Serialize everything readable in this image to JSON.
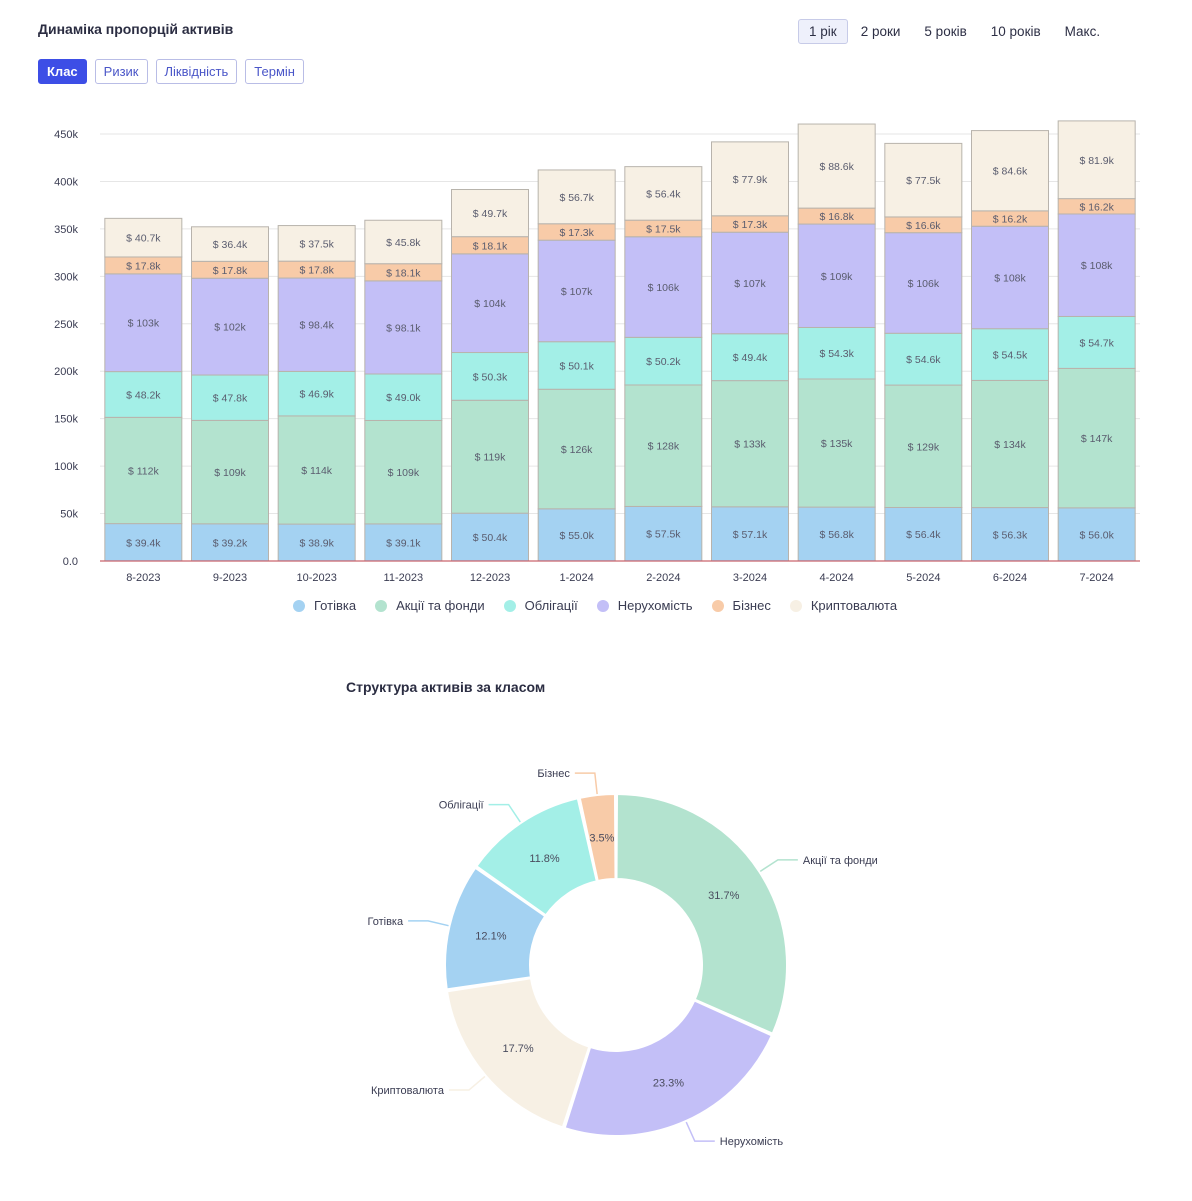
{
  "header": {
    "title": "Динаміка пропорцій активів"
  },
  "range_tabs": [
    {
      "label": "1 рік",
      "active": true
    },
    {
      "label": "2 роки",
      "active": false
    },
    {
      "label": "5 років",
      "active": false
    },
    {
      "label": "10 років",
      "active": false
    },
    {
      "label": "Макс.",
      "active": false
    }
  ],
  "class_tabs": [
    {
      "label": "Клас",
      "active": true
    },
    {
      "label": "Ризик",
      "active": false
    },
    {
      "label": "Ліквідність",
      "active": false
    },
    {
      "label": "Термін",
      "active": false
    }
  ],
  "colors": {
    "cash": "#a4d2f2",
    "stocks": "#b3e3cf",
    "bonds": "#a3efe7",
    "realty": "#c3bff7",
    "business": "#f8cba8",
    "crypto": "#f7f0e4",
    "bar_stroke": "#b8b3ac",
    "axis": "#c9636c",
    "grid": "#e6e6e6"
  },
  "chart_data": [
    {
      "type": "bar",
      "stacked": true,
      "title": "",
      "categories": [
        "8-2023",
        "9-2023",
        "10-2023",
        "11-2023",
        "12-2023",
        "1-2024",
        "2-2024",
        "3-2024",
        "4-2024",
        "5-2024",
        "6-2024",
        "7-2024"
      ],
      "ylim": [
        0,
        460000
      ],
      "yticks": [
        {
          "value": 0,
          "label": "0.0"
        },
        {
          "value": 50000,
          "label": "50k"
        },
        {
          "value": 100000,
          "label": "100k"
        },
        {
          "value": 150000,
          "label": "150k"
        },
        {
          "value": 200000,
          "label": "200k"
        },
        {
          "value": 250000,
          "label": "250k"
        },
        {
          "value": 300000,
          "label": "300k"
        },
        {
          "value": 350000,
          "label": "350k"
        },
        {
          "value": 400000,
          "label": "400k"
        },
        {
          "value": 450000,
          "label": "450k"
        }
      ],
      "grid": true,
      "legend_position": "bottom",
      "series": [
        {
          "name": "Готівка",
          "color_key": "cash",
          "values": [
            39400,
            39200,
            38900,
            39100,
            50400,
            55000,
            57500,
            57100,
            56800,
            56400,
            56300,
            56000
          ],
          "labels": [
            "$ 39.4k",
            "$ 39.2k",
            "$ 38.9k",
            "$ 39.1k",
            "$ 50.4k",
            "$ 55.0k",
            "$ 57.5k",
            "$ 57.1k",
            "$ 56.8k",
            "$ 56.4k",
            "$ 56.3k",
            "$ 56.0k"
          ]
        },
        {
          "name": "Акції та фонди",
          "color_key": "stocks",
          "values": [
            112000,
            109000,
            114000,
            109000,
            119000,
            126000,
            128000,
            133000,
            135000,
            129000,
            134000,
            147000
          ],
          "labels": [
            "$ 112k",
            "$ 109k",
            "$ 114k",
            "$ 109k",
            "$ 119k",
            "$ 126k",
            "$ 128k",
            "$ 133k",
            "$ 135k",
            "$ 129k",
            "$ 134k",
            "$ 147k"
          ]
        },
        {
          "name": "Облігації",
          "color_key": "bonds",
          "values": [
            48200,
            47800,
            46900,
            49000,
            50300,
            50100,
            50200,
            49400,
            54300,
            54600,
            54500,
            54700
          ],
          "labels": [
            "$ 48.2k",
            "$ 47.8k",
            "$ 46.9k",
            "$ 49.0k",
            "$ 50.3k",
            "$ 50.1k",
            "$ 50.2k",
            "$ 49.4k",
            "$ 54.3k",
            "$ 54.6k",
            "$ 54.5k",
            "$ 54.7k"
          ]
        },
        {
          "name": "Нерухомість",
          "color_key": "realty",
          "values": [
            103000,
            102000,
            98400,
            98100,
            104000,
            107000,
            106000,
            107000,
            109000,
            106000,
            108000,
            108000
          ],
          "labels": [
            "$ 103k",
            "$ 102k",
            "$ 98.4k",
            "$ 98.1k",
            "$ 104k",
            "$ 107k",
            "$ 106k",
            "$ 107k",
            "$ 109k",
            "$ 106k",
            "$ 108k",
            "$ 108k"
          ]
        },
        {
          "name": "Бізнес",
          "color_key": "business",
          "values": [
            17800,
            17800,
            17800,
            18100,
            18100,
            17300,
            17500,
            17300,
            16800,
            16600,
            16200,
            16200
          ],
          "labels": [
            "$ 17.8k",
            "$ 17.8k",
            "$ 17.8k",
            "$ 18.1k",
            "$ 18.1k",
            "$ 17.3k",
            "$ 17.5k",
            "$ 17.3k",
            "$ 16.8k",
            "$ 16.6k",
            "$ 16.2k",
            "$ 16.2k"
          ]
        },
        {
          "name": "Криптовалюта",
          "color_key": "crypto",
          "values": [
            40700,
            36400,
            37500,
            45800,
            49700,
            56700,
            56400,
            77900,
            88600,
            77500,
            84600,
            81900
          ],
          "labels": [
            "$ 40.7k",
            "$ 36.4k",
            "$ 37.5k",
            "$ 45.8k",
            "$ 49.7k",
            "$ 56.7k",
            "$ 56.4k",
            "$ 77.9k",
            "$ 88.6k",
            "$ 77.5k",
            "$ 84.6k",
            "$ 81.9k"
          ]
        }
      ]
    },
    {
      "type": "pie",
      "donut": true,
      "title": "Структура активів за класом",
      "slices": [
        {
          "name": "Акції та фонди",
          "value": 31.7,
          "label": "31.7%",
          "color_key": "stocks"
        },
        {
          "name": "Нерухомість",
          "value": 23.3,
          "label": "23.3%",
          "color_key": "realty"
        },
        {
          "name": "Криптовалюта",
          "value": 17.7,
          "label": "17.7%",
          "color_key": "crypto"
        },
        {
          "name": "Готівка",
          "value": 12.1,
          "label": "12.1%",
          "color_key": "cash"
        },
        {
          "name": "Облігації",
          "value": 11.8,
          "label": "11.8%",
          "color_key": "bonds"
        },
        {
          "name": "Бізнес",
          "value": 3.5,
          "label": "3.5%",
          "color_key": "business"
        }
      ]
    }
  ]
}
